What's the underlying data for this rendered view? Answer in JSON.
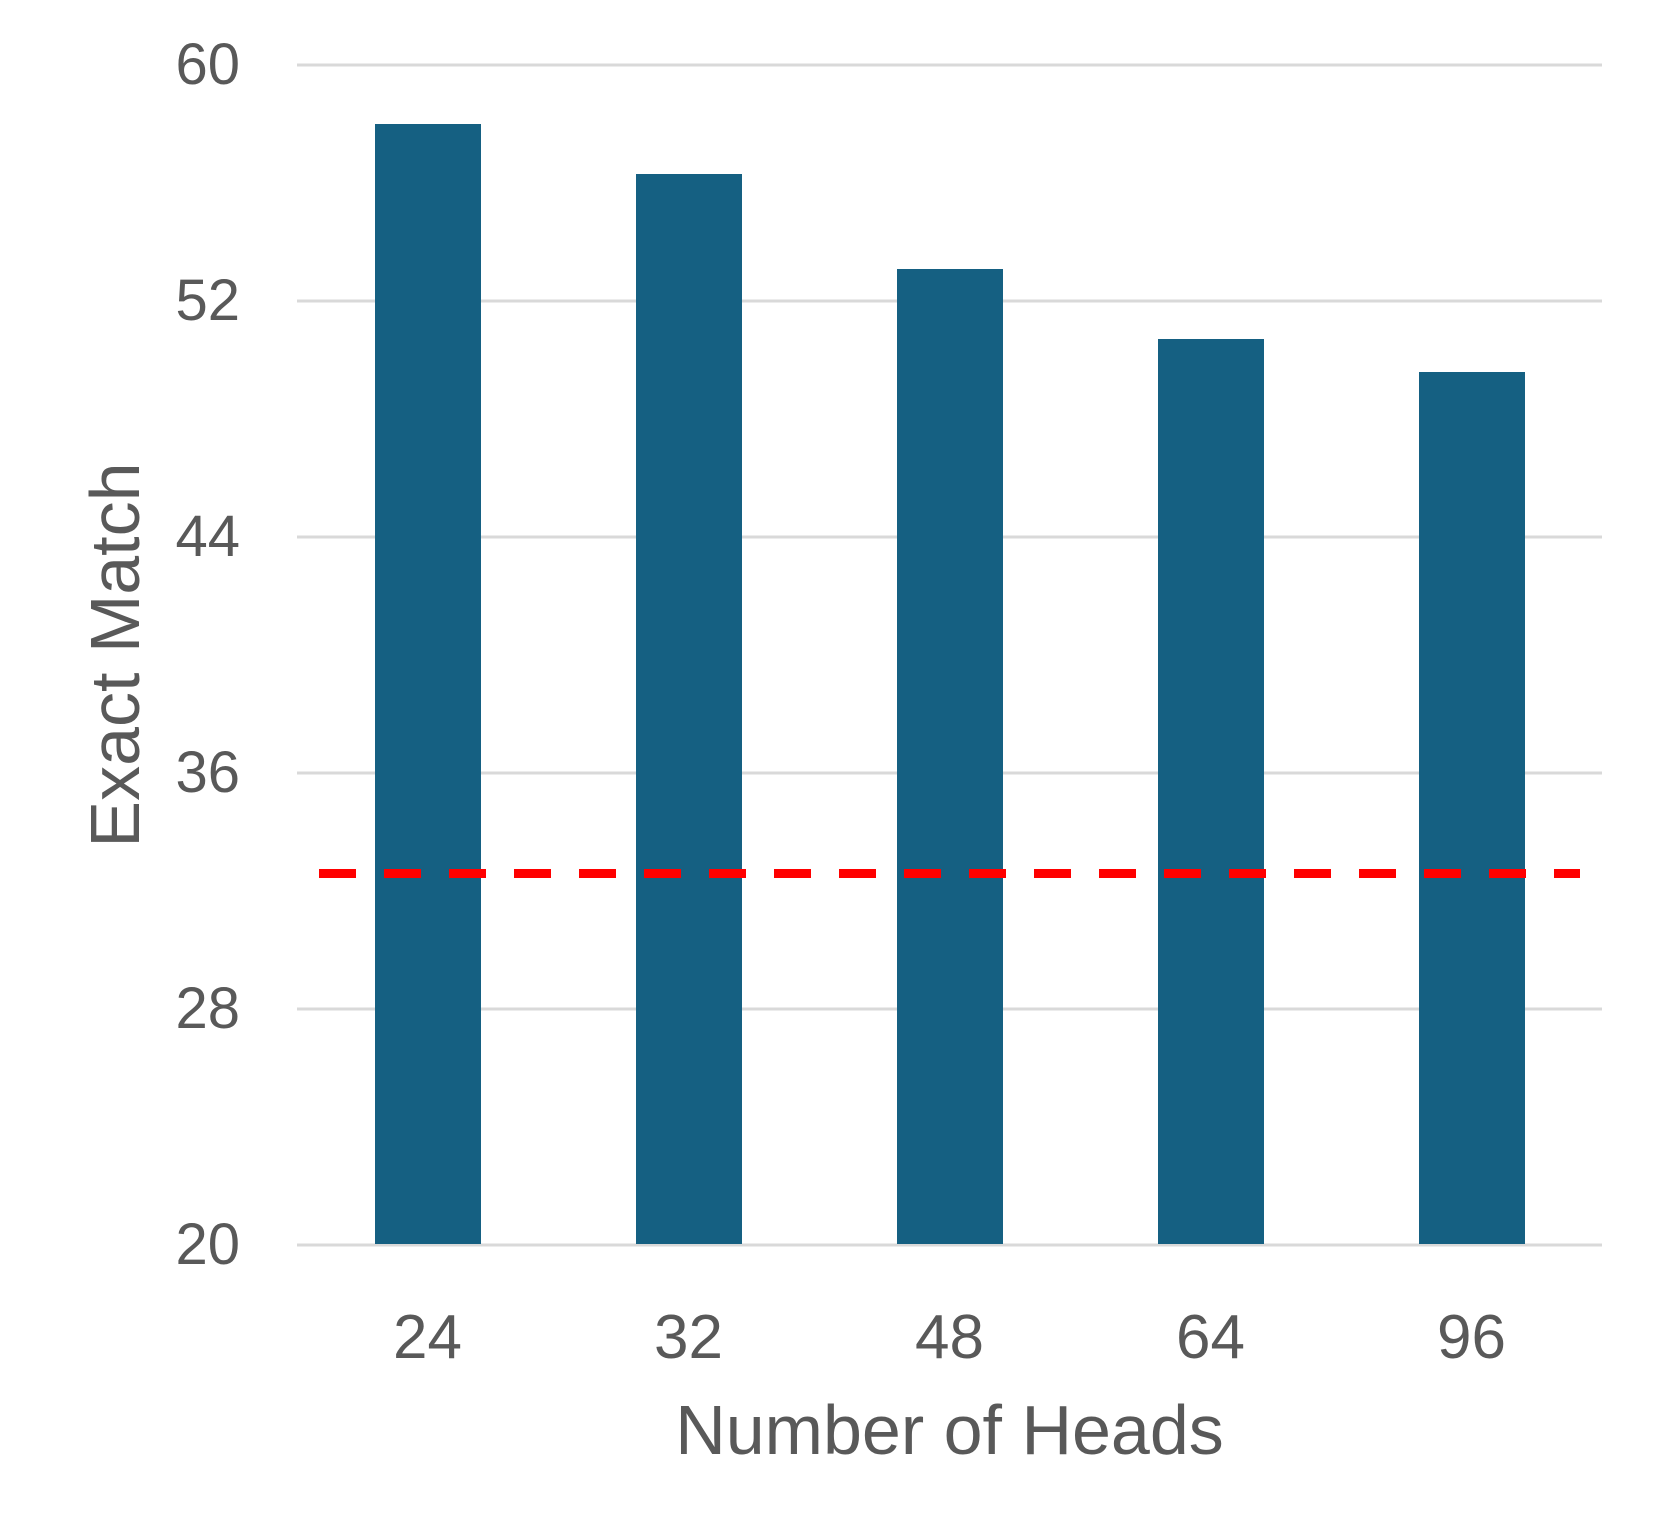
{
  "chart_data": {
    "type": "bar",
    "title": "",
    "xlabel": "Number of Heads",
    "ylabel": "Exact Match",
    "categories": [
      "24",
      "32",
      "48",
      "64",
      "96"
    ],
    "values": [
      58.0,
      56.3,
      53.1,
      50.7,
      49.6
    ],
    "yticks": [
      20,
      28,
      36,
      44,
      52,
      60
    ],
    "ylim": [
      20,
      60
    ],
    "grid": "horizontal-only",
    "legend": "none",
    "reference_line": {
      "value": 32.6,
      "style": "dashed",
      "color": "#ff0000"
    },
    "colors": {
      "bar": "#156082",
      "gridline": "#d9d9d9",
      "text": "#595959",
      "background": "#ffffff"
    }
  }
}
